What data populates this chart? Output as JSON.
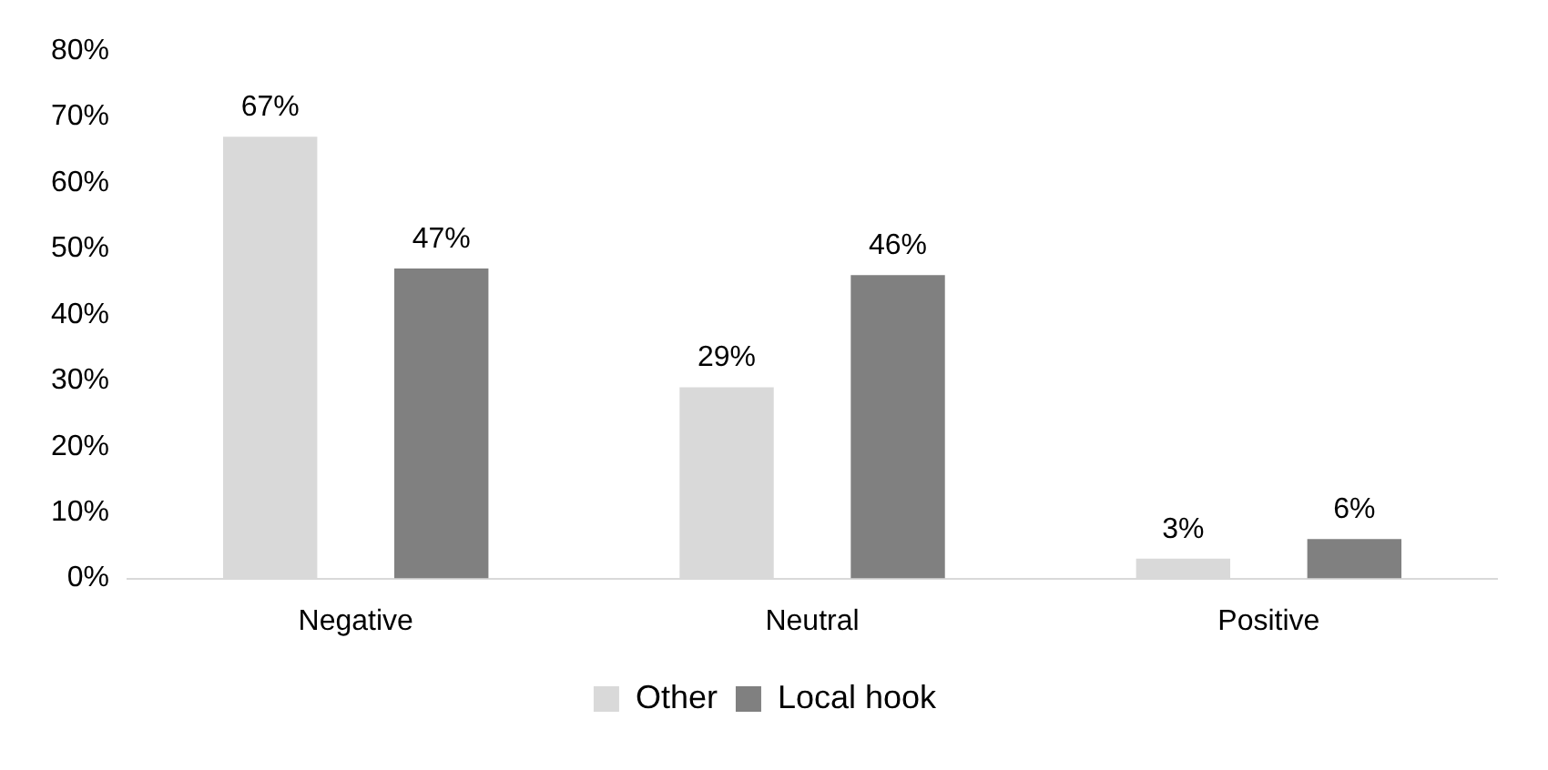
{
  "chart_data": {
    "type": "bar",
    "categories": [
      "Negative",
      "Neutral",
      "Positive"
    ],
    "series": [
      {
        "name": "Other",
        "color": "#d9d9d9",
        "values": [
          67,
          29,
          3
        ],
        "value_labels": [
          "67%",
          "29%",
          "3%"
        ]
      },
      {
        "name": "Local hook",
        "color": "#808080",
        "values": [
          47,
          46,
          6
        ],
        "value_labels": [
          "47%",
          "46%",
          "6%"
        ]
      }
    ],
    "ylim": [
      0,
      80
    ],
    "yticks": [
      {
        "value": 0,
        "label": "0%"
      },
      {
        "value": 10,
        "label": "10%"
      },
      {
        "value": 20,
        "label": "20%"
      },
      {
        "value": 30,
        "label": "30%"
      },
      {
        "value": 40,
        "label": "40%"
      },
      {
        "value": 50,
        "label": "50%"
      },
      {
        "value": 60,
        "label": "60%"
      },
      {
        "value": 70,
        "label": "70%"
      },
      {
        "value": 80,
        "label": "80%"
      }
    ],
    "grid": false,
    "legend": "bottom"
  }
}
